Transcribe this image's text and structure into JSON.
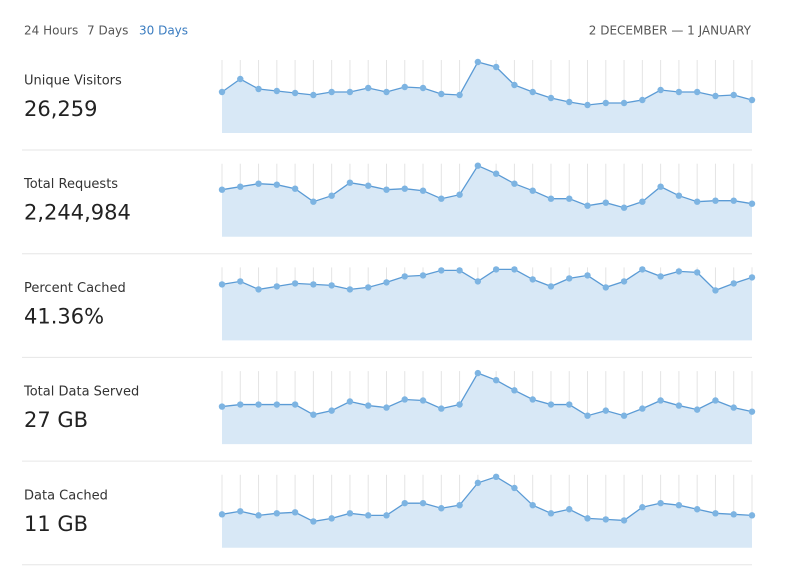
{
  "nav": {
    "ranges": [
      "24 Hours",
      "7 Days",
      "30 Days"
    ],
    "selected": 2,
    "date_range": "2 DECEMBER — 1 JANUARY"
  },
  "chart_data": [
    {
      "type": "area",
      "title": "Unique Visitors",
      "subtitle": "26,259",
      "color": "#5b9bd5",
      "values": [
        41,
        54,
        44,
        42,
        40,
        38,
        41,
        41,
        45,
        41,
        46,
        45,
        39,
        38,
        71,
        66,
        48,
        41,
        35,
        31,
        28,
        30,
        30,
        33,
        43,
        41,
        41,
        37,
        38,
        33
      ]
    },
    {
      "type": "area",
      "title": "Total Requests",
      "subtitle": "2,244,984",
      "color": "#5b9bd5",
      "values": [
        47,
        50,
        53,
        52,
        48,
        35,
        41,
        54,
        51,
        47,
        48,
        46,
        38,
        42,
        71,
        63,
        53,
        46,
        38,
        38,
        31,
        34,
        29,
        35,
        50,
        41,
        35,
        36,
        36,
        33
      ]
    },
    {
      "type": "area",
      "title": "Percent Cached",
      "subtitle": "41.36%",
      "color": "#5b9bd5",
      "values": [
        56,
        59,
        51,
        54,
        57,
        56,
        55,
        51,
        53,
        58,
        64,
        65,
        70,
        70,
        59,
        71,
        71,
        61,
        54,
        62,
        65,
        53,
        59,
        71,
        64,
        69,
        68,
        50,
        57,
        63
      ]
    },
    {
      "type": "area",
      "title": "Total Data Served",
      "subtitle": "27 GB",
      "color": "#5b9bd5",
      "values": [
        37,
        39,
        39,
        39,
        39,
        29,
        33,
        42,
        38,
        36,
        44,
        43,
        35,
        39,
        70,
        63,
        53,
        44,
        39,
        39,
        28,
        33,
        28,
        35,
        43,
        38,
        34,
        43,
        36,
        32
      ]
    },
    {
      "type": "area",
      "title": "Data Cached",
      "subtitle": "11 GB",
      "color": "#5b9bd5",
      "values": [
        33,
        36,
        32,
        34,
        35,
        26,
        29,
        34,
        32,
        32,
        44,
        44,
        39,
        42,
        64,
        70,
        59,
        42,
        34,
        38,
        29,
        28,
        27,
        40,
        44,
        42,
        38,
        34,
        33,
        32
      ]
    }
  ]
}
